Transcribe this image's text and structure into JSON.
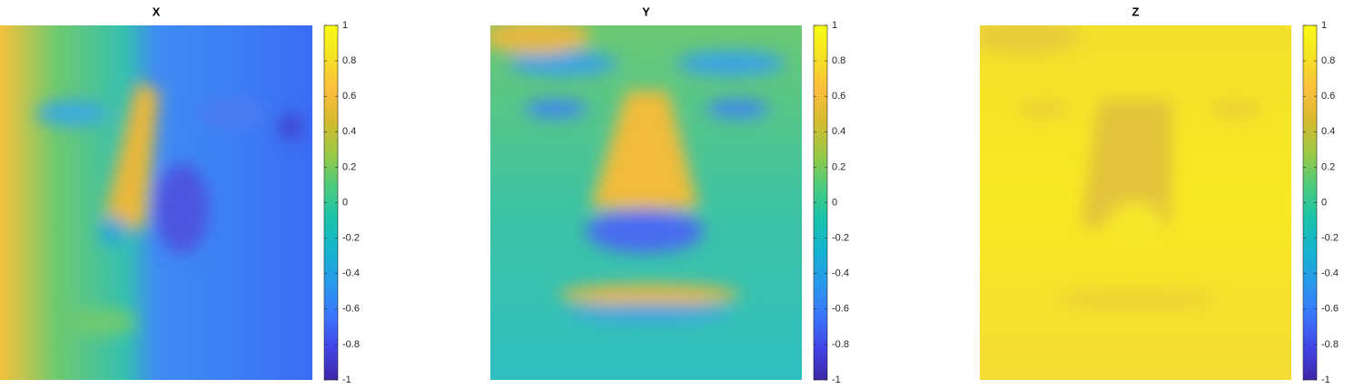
{
  "chart_data": [
    {
      "type": "image",
      "title": "X",
      "clim": [
        -1,
        1
      ],
      "cticks": [
        -1,
        -0.8,
        -0.6,
        -0.4,
        -0.2,
        0,
        0.2,
        0.4,
        0.6,
        0.8,
        1
      ],
      "colormap": [
        "#3e26a8",
        "#4245e6",
        "#3a76fc",
        "#2899ea",
        "#16b3d0",
        "#19c3aa",
        "#4bcb7d",
        "#99c945",
        "#d4bb2e",
        "#fcbe3c",
        "#f5e124",
        "#f9fb15"
      ]
    },
    {
      "type": "image",
      "title": "Y",
      "clim": [
        -1,
        1
      ],
      "cticks": [
        -1,
        -0.8,
        -0.6,
        -0.4,
        -0.2,
        0,
        0.2,
        0.4,
        0.6,
        0.8,
        1
      ],
      "colormap": [
        "#3e26a8",
        "#4245e6",
        "#3a76fc",
        "#2899ea",
        "#16b3d0",
        "#19c3aa",
        "#4bcb7d",
        "#99c945",
        "#d4bb2e",
        "#fcbe3c",
        "#f5e124",
        "#f9fb15"
      ]
    },
    {
      "type": "image",
      "title": "Z",
      "clim": [
        -1,
        1
      ],
      "cticks": [
        -1,
        -0.8,
        -0.6,
        -0.4,
        -0.2,
        0,
        0.2,
        0.4,
        0.6,
        0.8,
        1
      ],
      "colormap": [
        "#3e26a8",
        "#4245e6",
        "#3a76fc",
        "#2899ea",
        "#16b3d0",
        "#19c3aa",
        "#4bcb7d",
        "#99c945",
        "#d4bb2e",
        "#fcbe3c",
        "#f5e124",
        "#f9fb15"
      ]
    }
  ]
}
